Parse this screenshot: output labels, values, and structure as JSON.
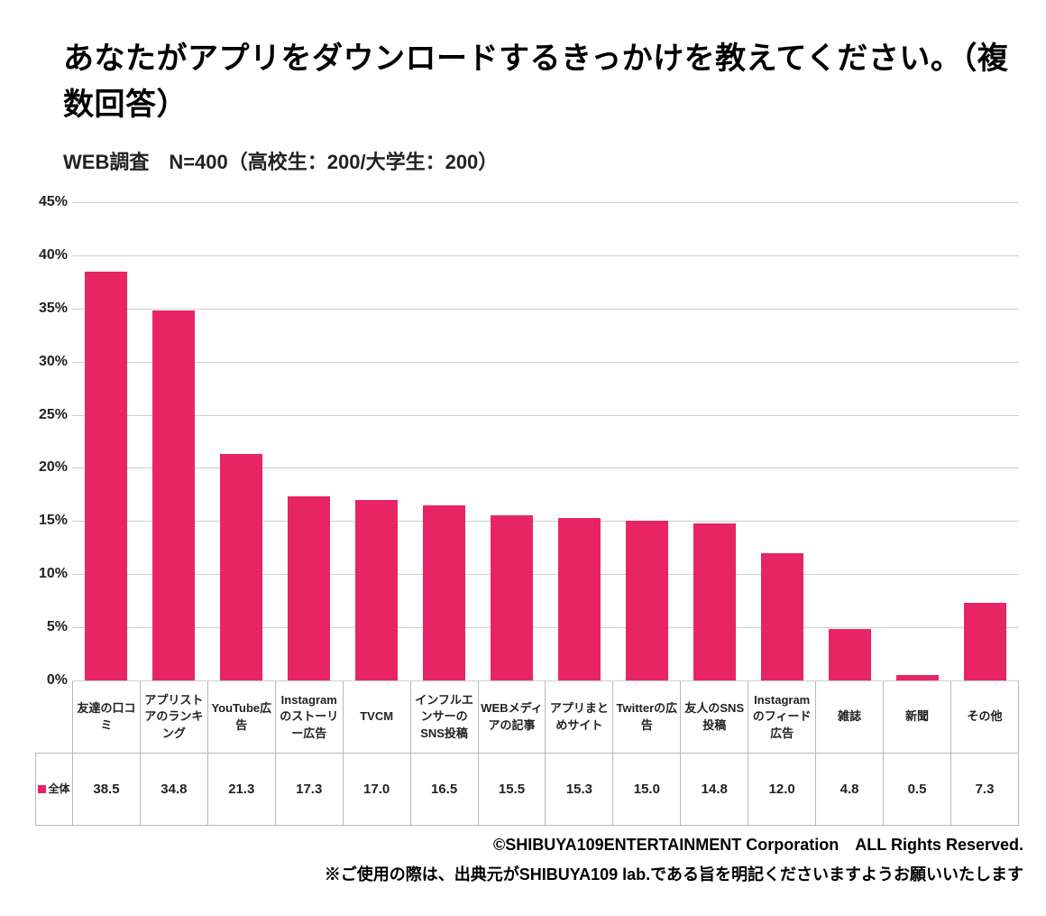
{
  "title": "あなたがアプリをダウンロードするきっかけを教えてください。（複数回答）",
  "subtitle": "WEB調査　N=400（高校生：200/大学生：200）",
  "chart": {
    "type": "bar",
    "categories": [
      "友達の口コミ",
      "アプリストアのランキング",
      "YouTube広告",
      "Instagramのストーリー広告",
      "TVCM",
      "インフルエンサーのSNS投稿",
      "WEBメディアの記事",
      "アプリまとめサイト",
      "Twitterの広告",
      "友人のSNS投稿",
      "Instagramのフィード広告",
      "雑誌",
      "新聞",
      "その他"
    ],
    "values": [
      38.5,
      34.8,
      21.3,
      17.3,
      17.0,
      16.5,
      15.5,
      15.3,
      15.0,
      14.8,
      12.0,
      4.8,
      0.5,
      7.3
    ],
    "value_labels": [
      "38.5",
      "34.8",
      "21.3",
      "17.3",
      "17.0",
      "16.5",
      "15.5",
      "15.3",
      "15.0",
      "14.8",
      "12.0",
      "4.8",
      "0.5",
      "7.3"
    ],
    "series_label": "全体",
    "bar_color": "#e72565",
    "ylim": [
      0,
      45
    ],
    "ytick_step": 5,
    "ytick_suffix": "%",
    "grid_color": "#cfcfcf",
    "background_color": "#ffffff",
    "axis_label_fontsize": 16,
    "category_fontsize": 13,
    "value_fontsize": 15,
    "title_fontsize": 34,
    "subtitle_fontsize": 22
  },
  "footer": {
    "line1": "©SHIBUYA109ENTERTAINMENT Corporation　ALL Rights Reserved.",
    "line2": "※ご使用の際は、出典元がSHIBUYA109 lab.である旨を明記くださいますようお願いいたします"
  }
}
